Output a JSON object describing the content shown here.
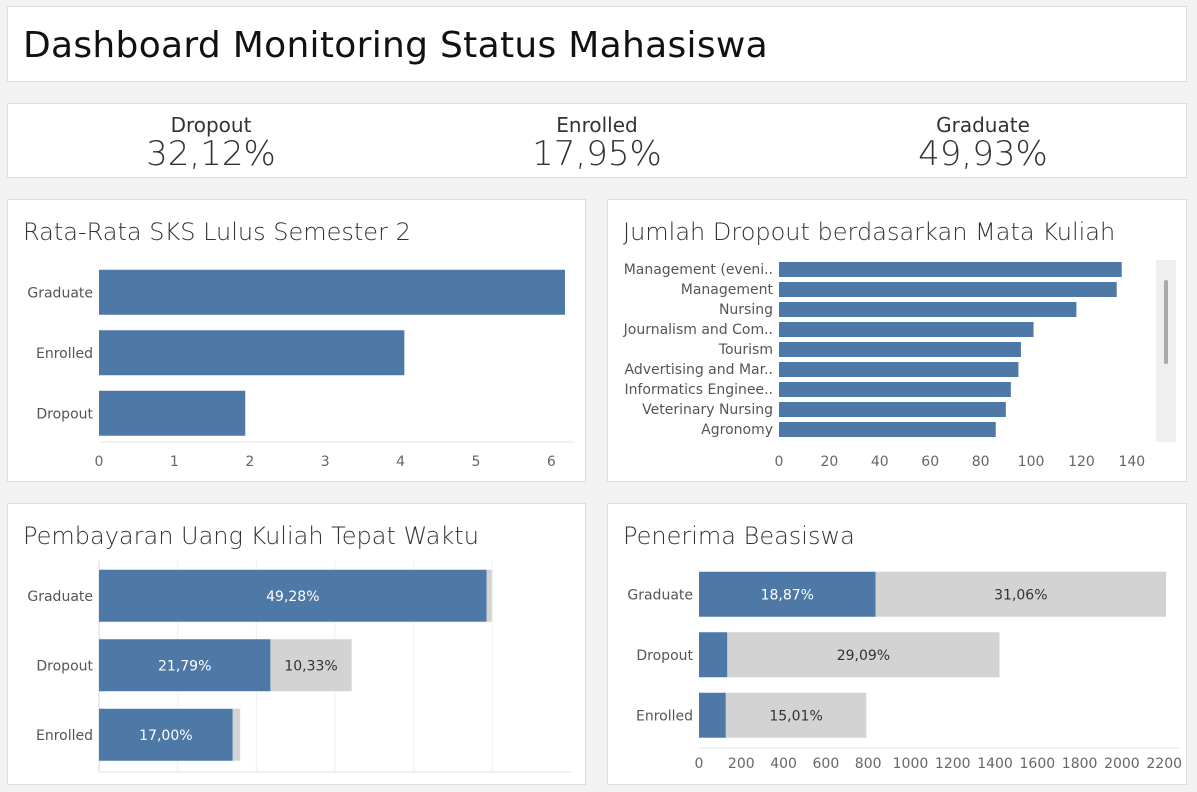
{
  "header": {
    "title": "Dashboard Monitoring Status Mahasiswa"
  },
  "kpis": [
    {
      "label": "Dropout",
      "value": "32,12%"
    },
    {
      "label": "Enrolled",
      "value": "17,95%"
    },
    {
      "label": "Graduate",
      "value": "49,93%"
    }
  ],
  "colors": {
    "primary": "#4e79a7",
    "secondary": "#d3d3d3",
    "background": "#f2f2f2"
  },
  "chart_data": [
    {
      "type": "bar",
      "orientation": "horizontal",
      "title": "Rata-Rata SKS Lulus Semester 2",
      "categories": [
        "Graduate",
        "Enrolled",
        "Dropout"
      ],
      "values": [
        6.18,
        4.05,
        1.94
      ],
      "xlim": [
        0,
        6.3
      ],
      "xticks": [
        "0",
        "1",
        "2",
        "3",
        "4",
        "5",
        "6"
      ],
      "grid": false
    },
    {
      "type": "bar",
      "orientation": "horizontal",
      "title": "Jumlah Dropout berdasarkan Mata Kuliah",
      "categories": [
        "Management (eveni..",
        "Management",
        "Nursing",
        "Journalism and Com..",
        "Tourism",
        "Advertising and Mar..",
        "Informatics Enginee..",
        "Veterinary Nursing",
        "Agronomy"
      ],
      "values": [
        136,
        134,
        118,
        101,
        96,
        95,
        92,
        90,
        86
      ],
      "xlim": [
        0,
        148
      ],
      "xticks": [
        "0",
        "20",
        "40",
        "60",
        "80",
        "100",
        "120",
        "140"
      ],
      "grid": false,
      "scrollbar": true
    },
    {
      "type": "bar",
      "orientation": "horizontal",
      "stacked": true,
      "title": "Pembayaran Uang Kuliah Tepat Waktu",
      "categories": [
        "Graduate",
        "Dropout",
        "Enrolled"
      ],
      "series": [
        {
          "values": [
            49.28,
            21.79,
            17.0
          ],
          "labels": [
            "49,28%",
            "21,79%",
            "17,00%"
          ]
        },
        {
          "values": [
            0.65,
            10.33,
            0.95
          ],
          "labels": [
            "",
            "10,33%",
            ""
          ]
        }
      ],
      "xlim": [
        0,
        60
      ],
      "grid": true
    },
    {
      "type": "bar",
      "orientation": "horizontal",
      "stacked": true,
      "title": "Penerima Beasiswa",
      "categories": [
        "Graduate",
        "Dropout",
        "Enrolled"
      ],
      "series": [
        {
          "values": [
            835,
            134,
            127
          ],
          "labels": [
            "18,87%",
            "",
            ""
          ]
        },
        {
          "values": [
            1374,
            1287,
            664
          ],
          "labels": [
            "31,06%",
            "29,09%",
            "15,01%"
          ]
        }
      ],
      "xlim": [
        0,
        2270
      ],
      "xticks": [
        "0",
        "200",
        "400",
        "600",
        "800",
        "1000",
        "1200",
        "1400",
        "1600",
        "1800",
        "2000",
        "2200"
      ],
      "grid": false
    }
  ]
}
